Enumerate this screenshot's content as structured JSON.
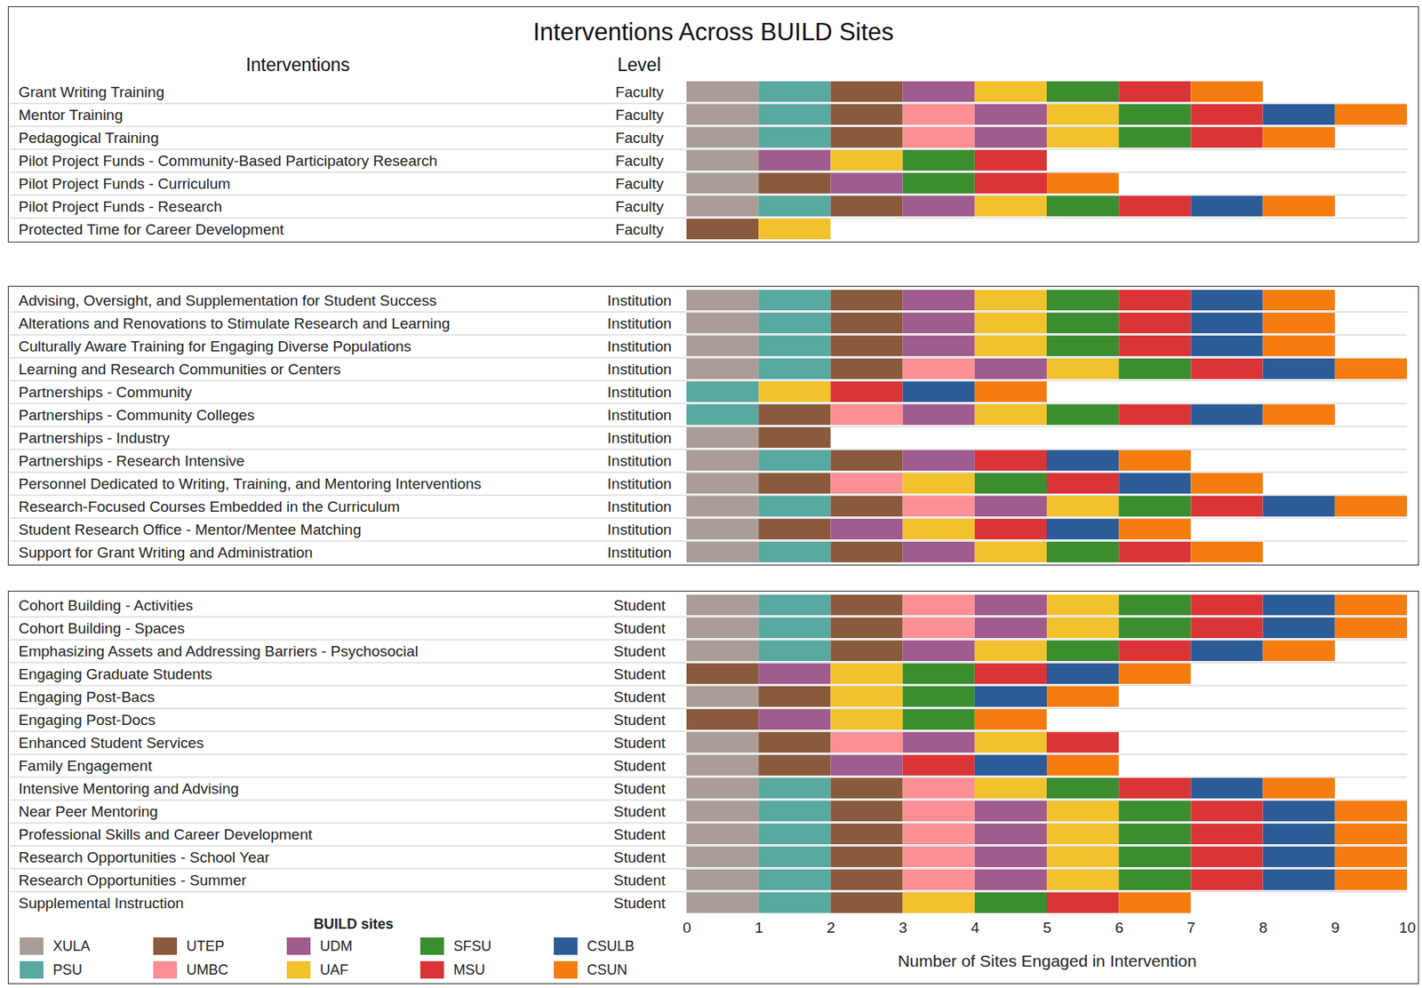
{
  "chart_data": {
    "type": "bar",
    "orientation": "horizontal",
    "stacked": true,
    "title": "Interventions Across BUILD Sites",
    "row_header": "Interventions",
    "level_header": "Level",
    "legend_title": "BUILD sites",
    "xlabel": "Number of Sites Engaged in Intervention",
    "xlim": [
      0,
      10
    ],
    "xticks": [
      0,
      1,
      2,
      3,
      4,
      5,
      6,
      7,
      8,
      9,
      10
    ],
    "categories": [
      "Grant Writing Training",
      "Mentor Training",
      "Pedagogical Training",
      "Pilot Project Funds - Community-Based Participatory Research",
      "Pilot Project Funds - Curriculum",
      "Pilot Project Funds - Research",
      "Protected Time for Career Development",
      "Advising, Oversight, and Supplementation for Student Success",
      "Alterations and Renovations to Stimulate Research and Learning",
      "Culturally Aware Training for Engaging Diverse Populations",
      "Learning and Research Communities or Centers",
      "Partnerships - Community",
      "Partnerships - Community Colleges",
      "Partnerships - Industry",
      "Partnerships - Research Intensive",
      "Personnel Dedicated to Writing, Training, and Mentoring Interventions",
      "Research-Focused Courses Embedded in the Curriculum",
      "Student Research Office - Mentor/Mentee Matching",
      "Support for Grant Writing and Administration",
      "Cohort Building - Activities",
      "Cohort Building - Spaces",
      "Emphasizing Assets and Addressing Barriers - Psychosocial",
      "Engaging Graduate Students",
      "Engaging Post-Bacs",
      "Engaging Post-Docs",
      "Enhanced Student Services",
      "Family Engagement",
      "Intensive Mentoring and Advising",
      "Near Peer Mentoring",
      "Professional Skills and Career Development",
      "Research Opportunities - School Year",
      "Research Opportunities - Summer",
      "Supplemental Instruction"
    ],
    "levels": [
      "Faculty",
      "Faculty",
      "Faculty",
      "Faculty",
      "Faculty",
      "Faculty",
      "Faculty",
      "Institution",
      "Institution",
      "Institution",
      "Institution",
      "Institution",
      "Institution",
      "Institution",
      "Institution",
      "Institution",
      "Institution",
      "Institution",
      "Institution",
      "Student",
      "Student",
      "Student",
      "Student",
      "Student",
      "Student",
      "Student",
      "Student",
      "Student",
      "Student",
      "Student",
      "Student",
      "Student",
      "Student"
    ],
    "series": [
      {
        "name": "XULA",
        "color": "#aa9d97",
        "values": [
          1,
          1,
          1,
          1,
          1,
          1,
          0,
          1,
          1,
          1,
          1,
          0,
          0,
          1,
          1,
          1,
          1,
          1,
          1,
          1,
          1,
          1,
          0,
          1,
          0,
          1,
          1,
          1,
          1,
          1,
          1,
          1,
          1
        ]
      },
      {
        "name": "PSU",
        "color": "#58a9a1",
        "values": [
          1,
          1,
          1,
          0,
          0,
          1,
          0,
          1,
          1,
          1,
          1,
          1,
          1,
          0,
          1,
          0,
          1,
          0,
          1,
          1,
          1,
          1,
          0,
          0,
          0,
          0,
          0,
          1,
          1,
          1,
          1,
          1,
          1
        ]
      },
      {
        "name": "UTEP",
        "color": "#8a5a3c",
        "values": [
          1,
          1,
          1,
          0,
          1,
          1,
          1,
          1,
          1,
          1,
          1,
          0,
          1,
          1,
          1,
          1,
          1,
          1,
          1,
          1,
          1,
          1,
          1,
          1,
          1,
          1,
          1,
          1,
          1,
          1,
          1,
          1,
          1
        ]
      },
      {
        "name": "UMBC",
        "color": "#fb8f94",
        "values": [
          0,
          1,
          1,
          0,
          0,
          0,
          0,
          0,
          0,
          0,
          1,
          0,
          1,
          0,
          0,
          1,
          1,
          0,
          0,
          1,
          1,
          0,
          0,
          0,
          0,
          1,
          0,
          1,
          1,
          1,
          1,
          1,
          0
        ]
      },
      {
        "name": "UDM",
        "color": "#a05b8f",
        "values": [
          1,
          1,
          1,
          1,
          1,
          1,
          0,
          1,
          1,
          1,
          1,
          0,
          1,
          0,
          1,
          0,
          1,
          1,
          1,
          1,
          1,
          1,
          1,
          0,
          1,
          1,
          1,
          0,
          1,
          1,
          1,
          1,
          0
        ]
      },
      {
        "name": "UAF",
        "color": "#f2c12e",
        "values": [
          1,
          1,
          1,
          1,
          0,
          1,
          1,
          1,
          1,
          1,
          1,
          1,
          1,
          0,
          0,
          1,
          1,
          1,
          1,
          1,
          1,
          1,
          1,
          1,
          1,
          1,
          0,
          1,
          1,
          1,
          1,
          1,
          1
        ]
      },
      {
        "name": "SFSU",
        "color": "#3b8e30",
        "values": [
          1,
          1,
          1,
          1,
          1,
          1,
          0,
          1,
          1,
          1,
          1,
          0,
          1,
          0,
          0,
          1,
          1,
          0,
          1,
          1,
          1,
          1,
          1,
          1,
          1,
          0,
          0,
          1,
          1,
          1,
          1,
          1,
          1
        ]
      },
      {
        "name": "MSU",
        "color": "#db3437",
        "values": [
          1,
          1,
          1,
          1,
          1,
          1,
          0,
          1,
          1,
          1,
          1,
          1,
          1,
          0,
          1,
          1,
          1,
          1,
          1,
          1,
          1,
          1,
          1,
          0,
          0,
          1,
          1,
          1,
          1,
          1,
          1,
          1,
          1
        ]
      },
      {
        "name": "CSULB",
        "color": "#2c5c98",
        "values": [
          0,
          1,
          0,
          0,
          0,
          1,
          0,
          1,
          1,
          1,
          1,
          1,
          1,
          0,
          1,
          1,
          1,
          1,
          0,
          1,
          1,
          1,
          1,
          1,
          0,
          0,
          1,
          1,
          1,
          1,
          1,
          1,
          0
        ]
      },
      {
        "name": "CSUN",
        "color": "#f57d10",
        "values": [
          1,
          1,
          1,
          0,
          1,
          1,
          0,
          1,
          1,
          1,
          1,
          1,
          1,
          0,
          1,
          1,
          1,
          1,
          1,
          1,
          1,
          1,
          1,
          1,
          1,
          0,
          1,
          1,
          1,
          1,
          1,
          1,
          1
        ]
      }
    ]
  }
}
